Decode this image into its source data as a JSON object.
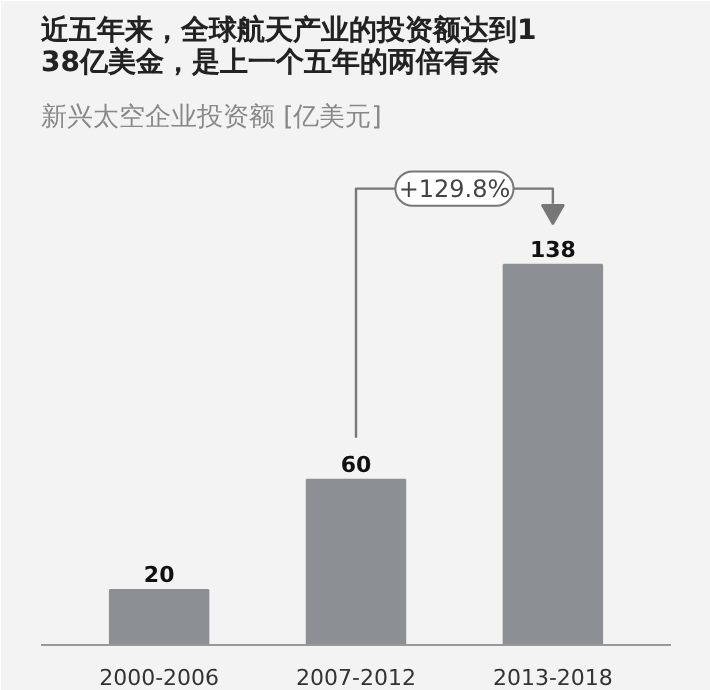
{
  "chart_data": {
    "type": "bar",
    "title": "近五年来，全球航天产业的投资额达到138亿美金，是上一个五年的两倍有余",
    "subtitle": "新兴太空企业投资额 [亿美元]",
    "categories": [
      "2000-2006",
      "2007-2012",
      "2013-2018"
    ],
    "values": [
      20,
      60,
      138
    ],
    "color": "#8c8f93",
    "data_labels": true,
    "grid": false,
    "tick_labels": "x",
    "annotations": [
      "+129.8%"
    ]
  }
}
